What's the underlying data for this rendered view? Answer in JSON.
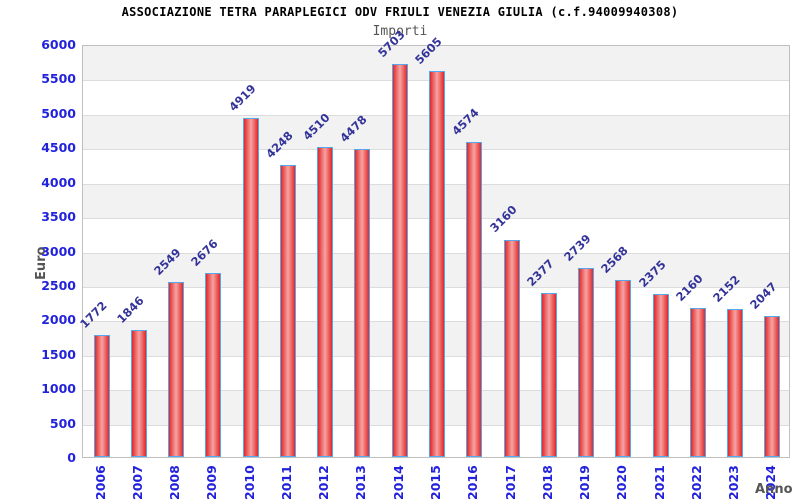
{
  "header": {
    "title": "ASSOCIAZIONE TETRA PARAPLEGICI ODV FRIULI VENEZIA GIULIA (c.f.94009940308)",
    "subtitle": "Importi"
  },
  "chart_data": {
    "type": "bar",
    "title": "ASSOCIAZIONE TETRA PARAPLEGICI ODV FRIULI VENEZIA GIULIA (c.f.94009940308)",
    "subtitle": "Importi",
    "xlabel": "Anno",
    "ylabel": "Euro",
    "categories": [
      "2006",
      "2007",
      "2008",
      "2009",
      "2010",
      "2011",
      "2012",
      "2013",
      "2014",
      "2015",
      "2016",
      "2017",
      "2018",
      "2019",
      "2020",
      "2021",
      "2022",
      "2023",
      "2024"
    ],
    "values": [
      1772,
      1846,
      2549,
      2676,
      4919,
      4248,
      4510,
      4478,
      5703,
      5605,
      4574,
      3160,
      2377,
      2739,
      2568,
      2375,
      2160,
      2152,
      2047
    ],
    "value_labels_rotation_deg": -45,
    "ylim": [
      0,
      6000
    ],
    "ytick_step": 500,
    "yticks": [
      0,
      500,
      1000,
      1500,
      2000,
      2500,
      3000,
      3500,
      4000,
      4500,
      5000,
      5500,
      6000
    ],
    "grid": "horizontal alternating bands every 500",
    "legend": "none",
    "colors": {
      "bar_fill_edge": "#e02828",
      "bar_fill_center": "#f7a3a3",
      "bar_border": "#55a8ee",
      "tick_label": "#2222dd",
      "value_label": "#333399",
      "band_gray": "#f2f2f2",
      "band_white": "#ffffff",
      "grid_line": "#dcdcdc",
      "plot_border": "#c0c0c0",
      "axis_title": "#555555",
      "title": "#000000",
      "subtitle": "#555555"
    }
  }
}
